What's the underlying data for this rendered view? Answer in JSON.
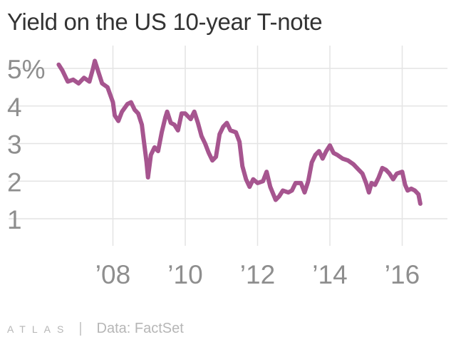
{
  "chart_data": {
    "type": "line",
    "title": "Yield on the US 10-year T-note",
    "xlabel": "",
    "ylabel": "",
    "x_ticks": [
      {
        "value": 2008,
        "label": "’08"
      },
      {
        "value": 2010,
        "label": "’10"
      },
      {
        "value": 2012,
        "label": "’12"
      },
      {
        "value": 2014,
        "label": "’14"
      },
      {
        "value": 2016,
        "label": "’16"
      }
    ],
    "y_ticks": [
      {
        "value": 5,
        "label": "5%"
      },
      {
        "value": 4,
        "label": "4"
      },
      {
        "value": 3,
        "label": "3"
      },
      {
        "value": 2,
        "label": "2"
      },
      {
        "value": 1,
        "label": "1"
      }
    ],
    "xlim": [
      2005.6,
      2016.8
    ],
    "ylim": [
      0.3,
      5.8
    ],
    "grid": true,
    "series": [
      {
        "color": "#a6558f",
        "points": [
          [
            2006.5,
            5.1
          ],
          [
            2006.6,
            4.95
          ],
          [
            2006.75,
            4.65
          ],
          [
            2006.9,
            4.7
          ],
          [
            2007.05,
            4.6
          ],
          [
            2007.2,
            4.75
          ],
          [
            2007.35,
            4.65
          ],
          [
            2007.45,
            5.0
          ],
          [
            2007.5,
            5.2
          ],
          [
            2007.6,
            4.9
          ],
          [
            2007.7,
            4.6
          ],
          [
            2007.85,
            4.5
          ],
          [
            2008.0,
            4.1
          ],
          [
            2008.05,
            3.75
          ],
          [
            2008.15,
            3.6
          ],
          [
            2008.25,
            3.85
          ],
          [
            2008.4,
            4.05
          ],
          [
            2008.5,
            4.1
          ],
          [
            2008.6,
            3.9
          ],
          [
            2008.7,
            3.8
          ],
          [
            2008.8,
            3.5
          ],
          [
            2008.87,
            2.95
          ],
          [
            2008.93,
            2.5
          ],
          [
            2008.97,
            2.1
          ],
          [
            2009.05,
            2.7
          ],
          [
            2009.15,
            2.9
          ],
          [
            2009.25,
            2.8
          ],
          [
            2009.35,
            3.3
          ],
          [
            2009.45,
            3.7
          ],
          [
            2009.5,
            3.85
          ],
          [
            2009.6,
            3.55
          ],
          [
            2009.7,
            3.5
          ],
          [
            2009.8,
            3.35
          ],
          [
            2009.9,
            3.8
          ],
          [
            2010.0,
            3.8
          ],
          [
            2010.15,
            3.65
          ],
          [
            2010.25,
            3.85
          ],
          [
            2010.35,
            3.55
          ],
          [
            2010.45,
            3.2
          ],
          [
            2010.55,
            3.0
          ],
          [
            2010.65,
            2.75
          ],
          [
            2010.75,
            2.55
          ],
          [
            2010.85,
            2.65
          ],
          [
            2010.95,
            3.25
          ],
          [
            2011.05,
            3.45
          ],
          [
            2011.15,
            3.55
          ],
          [
            2011.25,
            3.35
          ],
          [
            2011.4,
            3.3
          ],
          [
            2011.5,
            3.05
          ],
          [
            2011.58,
            2.4
          ],
          [
            2011.68,
            2.05
          ],
          [
            2011.78,
            1.85
          ],
          [
            2011.88,
            2.05
          ],
          [
            2012.0,
            1.95
          ],
          [
            2012.15,
            2.0
          ],
          [
            2012.25,
            2.25
          ],
          [
            2012.35,
            1.85
          ],
          [
            2012.5,
            1.5
          ],
          [
            2012.6,
            1.6
          ],
          [
            2012.7,
            1.75
          ],
          [
            2012.85,
            1.7
          ],
          [
            2012.95,
            1.75
          ],
          [
            2013.05,
            1.95
          ],
          [
            2013.2,
            1.95
          ],
          [
            2013.3,
            1.7
          ],
          [
            2013.4,
            2.0
          ],
          [
            2013.5,
            2.5
          ],
          [
            2013.6,
            2.7
          ],
          [
            2013.7,
            2.8
          ],
          [
            2013.8,
            2.6
          ],
          [
            2013.9,
            2.8
          ],
          [
            2014.0,
            2.95
          ],
          [
            2014.1,
            2.75
          ],
          [
            2014.2,
            2.7
          ],
          [
            2014.35,
            2.6
          ],
          [
            2014.5,
            2.55
          ],
          [
            2014.65,
            2.45
          ],
          [
            2014.8,
            2.3
          ],
          [
            2014.9,
            2.2
          ],
          [
            2015.0,
            1.95
          ],
          [
            2015.08,
            1.7
          ],
          [
            2015.15,
            1.95
          ],
          [
            2015.25,
            1.9
          ],
          [
            2015.35,
            2.1
          ],
          [
            2015.45,
            2.35
          ],
          [
            2015.55,
            2.3
          ],
          [
            2015.65,
            2.2
          ],
          [
            2015.75,
            2.05
          ],
          [
            2015.85,
            2.2
          ],
          [
            2016.0,
            2.25
          ],
          [
            2016.08,
            1.9
          ],
          [
            2016.15,
            1.75
          ],
          [
            2016.25,
            1.8
          ],
          [
            2016.35,
            1.75
          ],
          [
            2016.45,
            1.65
          ],
          [
            2016.5,
            1.4
          ]
        ]
      }
    ]
  },
  "footer": {
    "logo": "ATLAS",
    "separator": "|",
    "source": "Data: FactSet"
  },
  "colors": {
    "line": "#a6558f",
    "grid": "#e4e4e4",
    "axis_text": "#8e8e8e",
    "title": "#333333",
    "footer": "#b6b6b6"
  }
}
